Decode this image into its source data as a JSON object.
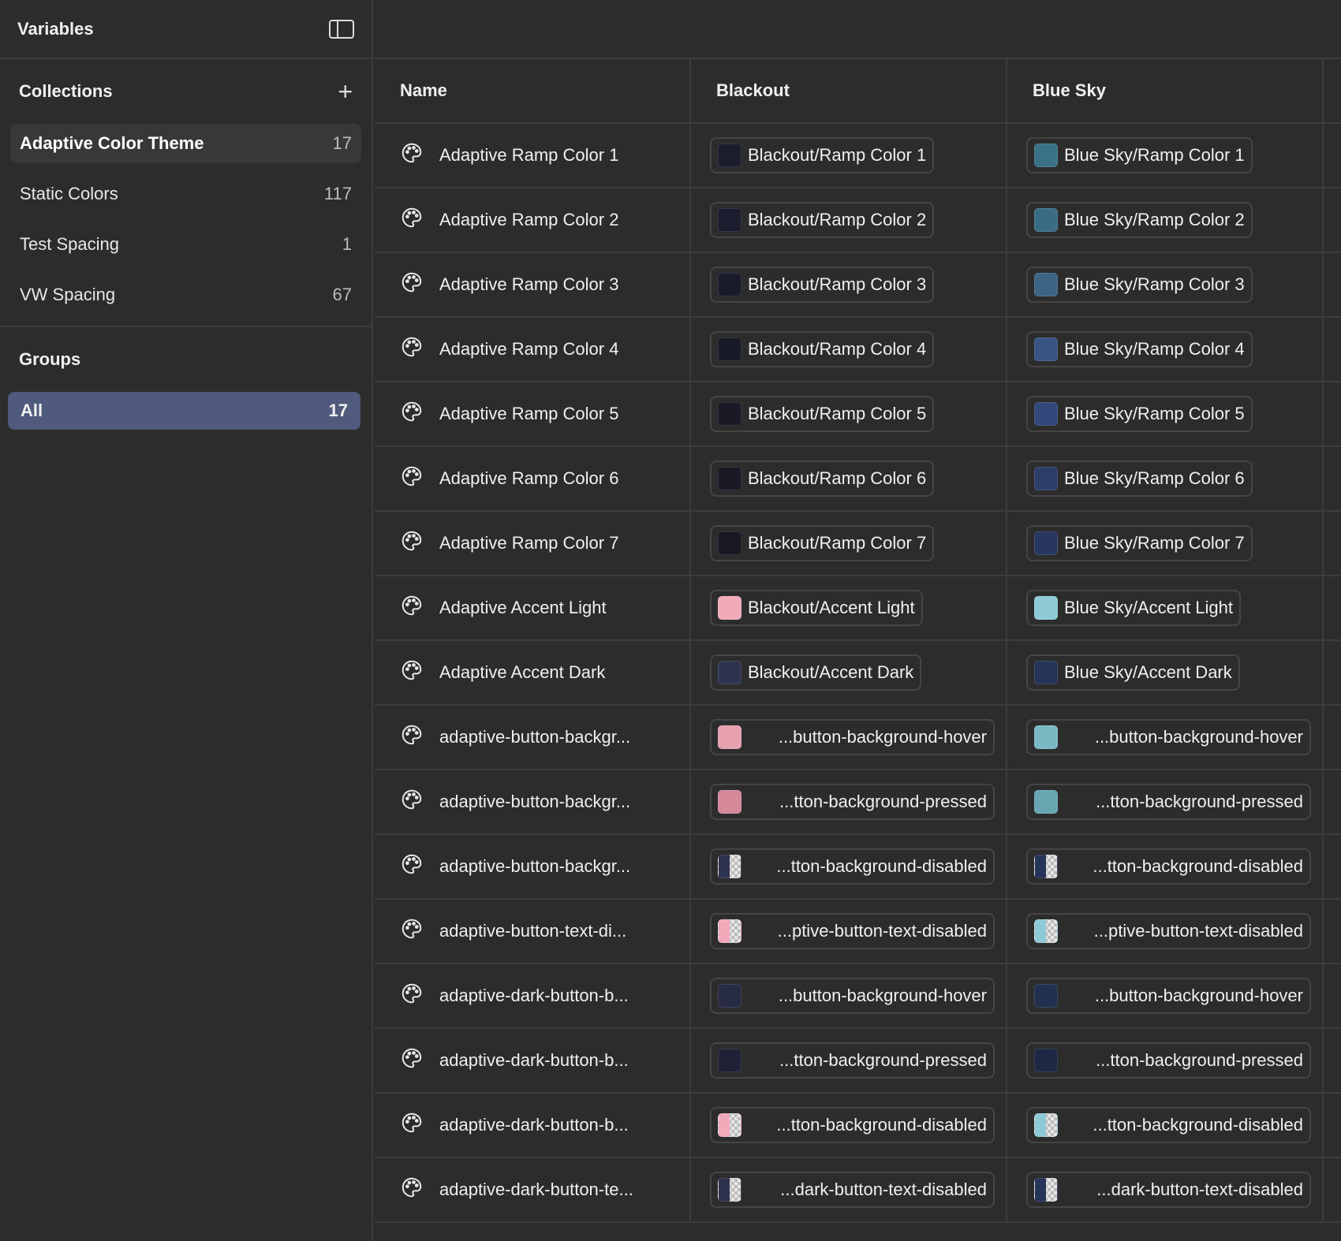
{
  "sidebar": {
    "title": "Variables",
    "collections_label": "Collections",
    "groups_label": "Groups",
    "collections": [
      {
        "label": "Adaptive Color Theme",
        "count": "17",
        "active": true
      },
      {
        "label": "Static Colors",
        "count": "117"
      },
      {
        "label": "Test Spacing",
        "count": "1"
      },
      {
        "label": "VW Spacing",
        "count": "67"
      }
    ],
    "groups": [
      {
        "label": "All",
        "count": "17"
      }
    ]
  },
  "table": {
    "headers": [
      "Name",
      "Blackout",
      "Blue Sky"
    ],
    "rows": [
      {
        "name": "Adaptive Ramp Color 1",
        "blackout": "Blackout/Ramp Color 1",
        "bc": "#1b1c2c",
        "bluesky": "Blue Sky/Ramp Color 1",
        "sc": "#3a7186"
      },
      {
        "name": "Adaptive Ramp Color 2",
        "blackout": "Blackout/Ramp Color 2",
        "bc": "#1b1c2e",
        "bluesky": "Blue Sky/Ramp Color 2",
        "sc": "#3a6d84"
      },
      {
        "name": "Adaptive Ramp Color 3",
        "blackout": "Blackout/Ramp Color 3",
        "bc": "#1a1b2a",
        "bluesky": "Blue Sky/Ramp Color 3",
        "sc": "#3c6485"
      },
      {
        "name": "Adaptive Ramp Color 4",
        "blackout": "Blackout/Ramp Color 4",
        "bc": "#191a27",
        "bluesky": "Blue Sky/Ramp Color 4",
        "sc": "#395482"
      },
      {
        "name": "Adaptive Ramp Color 5",
        "blackout": "Blackout/Ramp Color 5",
        "bc": "#191a26",
        "bluesky": "Blue Sky/Ramp Color 5",
        "sc": "#32477a"
      },
      {
        "name": "Adaptive Ramp Color 6",
        "blackout": "Blackout/Ramp Color 6",
        "bc": "#181924",
        "bluesky": "Blue Sky/Ramp Color 6",
        "sc": "#2c3d69"
      },
      {
        "name": "Adaptive Ramp Color 7",
        "blackout": "Blackout/Ramp Color 7",
        "bc": "#171822",
        "bluesky": "Blue Sky/Ramp Color 7",
        "sc": "#283760"
      },
      {
        "name": "Adaptive Accent Light",
        "blackout": "Blackout/Accent Light",
        "bc": "#f0aab9",
        "bluesky": "Blue Sky/Accent Light",
        "sc": "#8ecad6"
      },
      {
        "name": "Adaptive Accent Dark",
        "blackout": "Blackout/Accent Dark",
        "bc": "#2e3350",
        "bluesky": "Blue Sky/Accent Dark",
        "sc": "#27345a"
      },
      {
        "name": "adaptive-button-backgr...",
        "blackout": "...button-background-hover",
        "bc": "#e6a0b0",
        "bluesky": "...button-background-hover",
        "sc": "#7ab8c4",
        "trunc": true
      },
      {
        "name": "adaptive-button-backgr...",
        "blackout": "...tton-background-pressed",
        "bc": "#d4889a",
        "bluesky": "...tton-background-pressed",
        "sc": "#68a6b2",
        "trunc": true
      },
      {
        "name": "adaptive-button-backgr...",
        "blackout": "...tton-background-disabled",
        "bc": "#2e3350",
        "bluesky": "...tton-background-disabled",
        "sc": "#27345a",
        "trunc": true,
        "split": true
      },
      {
        "name": "adaptive-button-text-di...",
        "blackout": "...ptive-button-text-disabled",
        "bc": "#f0aab9",
        "bluesky": "...ptive-button-text-disabled",
        "sc": "#8ecad6",
        "trunc": true,
        "split": true
      },
      {
        "name": "adaptive-dark-button-b...",
        "blackout": "...button-background-hover",
        "bc": "#262a42",
        "bluesky": "...button-background-hover",
        "sc": "#22304f",
        "trunc": true
      },
      {
        "name": "adaptive-dark-button-b...",
        "blackout": "...tton-background-pressed",
        "bc": "#1f2236",
        "bluesky": "...tton-background-pressed",
        "sc": "#1d2844",
        "trunc": true
      },
      {
        "name": "adaptive-dark-button-b...",
        "blackout": "...tton-background-disabled",
        "bc": "#f0aab9",
        "bluesky": "...tton-background-disabled",
        "sc": "#8ecad6",
        "trunc": true,
        "split": true
      },
      {
        "name": "adaptive-dark-button-te...",
        "blackout": "...dark-button-text-disabled",
        "bc": "#2e3350",
        "bluesky": "...dark-button-text-disabled",
        "sc": "#27345a",
        "trunc": true,
        "split": true
      }
    ]
  }
}
